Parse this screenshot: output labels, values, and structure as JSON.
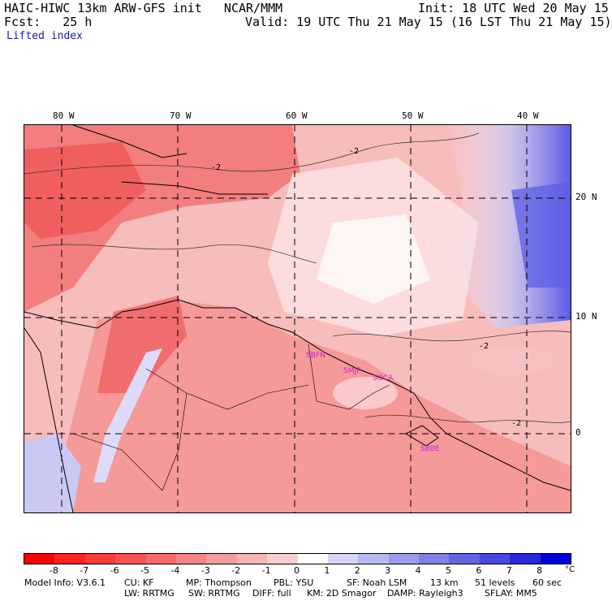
{
  "header": {
    "model_title": "HAIC-HIWC 13km ARW-GFS init   NCAR/MMM",
    "init": "Init: 18 UTC Wed 20 May 15",
    "forecast": "Fcst:   25 h",
    "valid": "Valid: 19 UTC Thu 21 May 15 (16 LST Thu 21 May 15)",
    "field_name": "Lifted index"
  },
  "map": {
    "longitude_labels": [
      "80 W",
      "70 W",
      "60 W",
      "50 W",
      "40 W"
    ],
    "latitude_labels": [
      "20 N",
      "10 N",
      "0"
    ],
    "stations": [
      "SBFN",
      "SMJP",
      "SOCA",
      "SBBE"
    ],
    "contour_label": "-2"
  },
  "colorbar": {
    "ticks": [
      "-8",
      "-7",
      "-6",
      "-5",
      "-4",
      "-3",
      "-2",
      "-1",
      "0",
      "1",
      "2",
      "3",
      "4",
      "5",
      "6",
      "7",
      "8"
    ],
    "unit": "°C",
    "colors": [
      "#ff0000",
      "#ff2222",
      "#fc3b3b",
      "#f85454",
      "#f66a6a",
      "#f58484",
      "#f59d9d",
      "#f7b6b6",
      "#f9d0d0",
      "#ffffff",
      "#d4d4f6",
      "#b8b8f0",
      "#9c9cec",
      "#8080e8",
      "#6464e4",
      "#4848e0",
      "#2828dc",
      "#0000d8"
    ]
  },
  "footer": {
    "line1": [
      "Model Info: V3.6.1",
      "CU: KF",
      "MP: Thompson",
      "PBL: YSU",
      "SF: Noah LSM",
      "13 km",
      "51 levels",
      "60 sec"
    ],
    "line2": [
      "LW: RRTMG",
      "SW: RRTMG",
      "DIFF: full",
      "KM: 2D Smagor",
      "DAMP: Rayleigh3",
      "SFLAY: MM5"
    ]
  }
}
